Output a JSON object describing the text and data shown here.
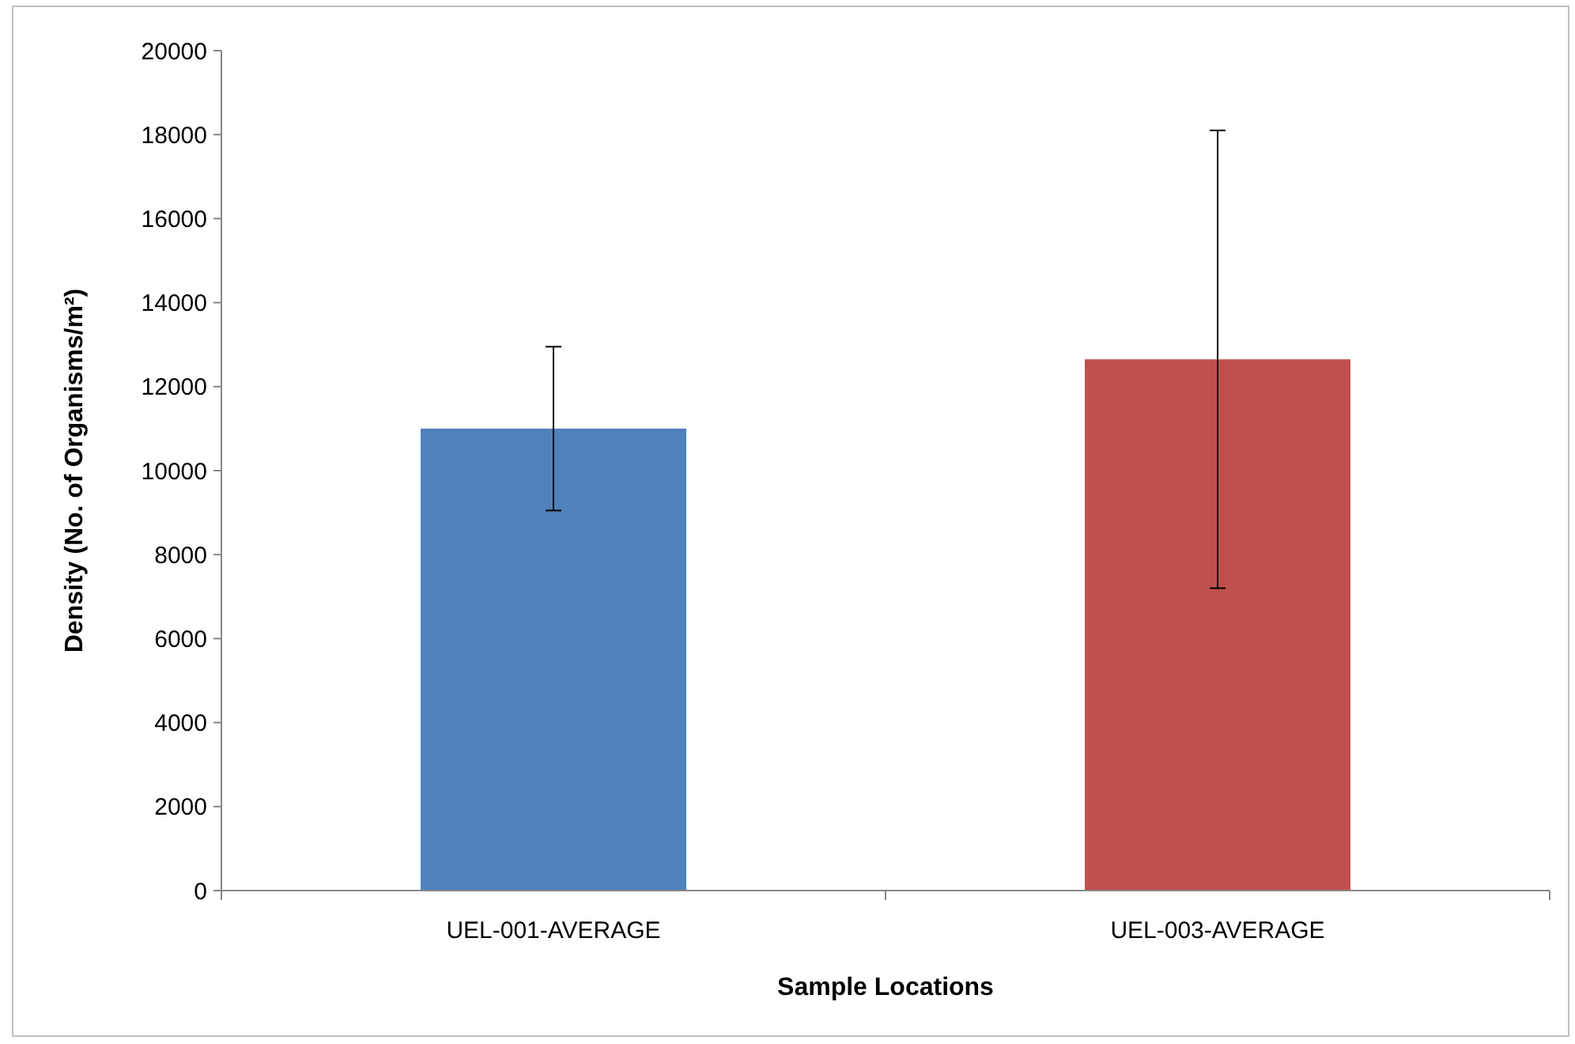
{
  "chart_data": {
    "type": "bar",
    "xlabel": "Sample Locations",
    "ylabel": "Density (No. of Organisms/m²)",
    "categories": [
      "UEL-001-AVERAGE",
      "UEL-003-AVERAGE"
    ],
    "values": [
      11000,
      12650
    ],
    "colors": [
      "#4f81bd",
      "#c0504d"
    ],
    "errors": [
      1950,
      5450
    ],
    "ylim": [
      0,
      20000
    ],
    "yticks": [
      0,
      2000,
      4000,
      6000,
      8000,
      10000,
      12000,
      14000,
      16000,
      18000,
      20000
    ],
    "grid": false
  }
}
